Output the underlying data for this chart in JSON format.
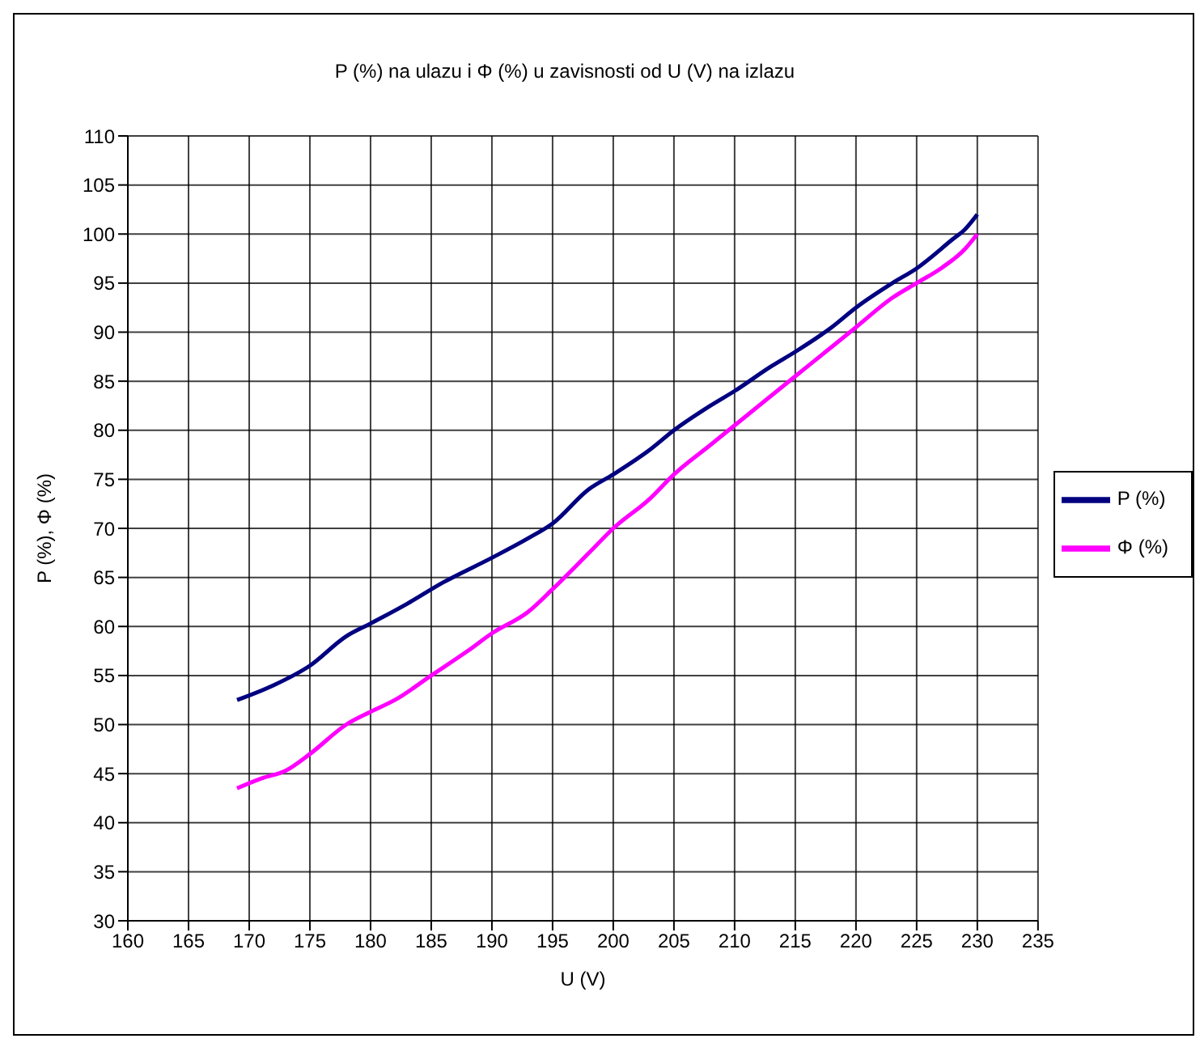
{
  "chart_data": {
    "type": "line",
    "title": "P (%) na ulazu i Φ (%) u zavisnosti od U (V) na izlazu",
    "xlabel": "U (V)",
    "ylabel": "P (%), Φ (%)",
    "xlim": [
      160,
      235
    ],
    "xticks": [
      160,
      165,
      170,
      175,
      180,
      185,
      190,
      195,
      200,
      205,
      210,
      215,
      220,
      225,
      230,
      235
    ],
    "ylim": [
      30,
      110
    ],
    "yticks": [
      30,
      35,
      40,
      45,
      50,
      55,
      60,
      65,
      70,
      75,
      80,
      85,
      90,
      95,
      100,
      105,
      110
    ],
    "grid": true,
    "legend": "right",
    "marker": "none",
    "line_style": "solid",
    "series": [
      {
        "name": "P (%)",
        "color": "#000080",
        "x": [
          169,
          172,
          175,
          178,
          180,
          183,
          186,
          190,
          193,
          195,
          198,
          200,
          203,
          205,
          208,
          210,
          213,
          215,
          218,
          220,
          223,
          225,
          228,
          229,
          230
        ],
        "values": [
          52.5,
          54,
          56,
          59,
          60.3,
          62.3,
          64.5,
          67,
          69,
          70.5,
          74,
          75.5,
          78,
          80,
          82.5,
          84,
          86.5,
          88,
          90.5,
          92.5,
          95,
          96.5,
          99.5,
          100.5,
          102
        ]
      },
      {
        "name": "Φ (%)",
        "color": "#ff00ff",
        "x": [
          169,
          171,
          173,
          175,
          178,
          180,
          182,
          185,
          188,
          190,
          193,
          195,
          198,
          200,
          203,
          205,
          208,
          210,
          213,
          215,
          218,
          220,
          223,
          225,
          227,
          229,
          230
        ],
        "values": [
          43.5,
          44.5,
          45.3,
          47,
          50,
          51.3,
          52.5,
          55,
          57.5,
          59.3,
          61.5,
          63.8,
          67.5,
          70,
          73,
          75.5,
          78.5,
          80.5,
          83.5,
          85.5,
          88.5,
          90.5,
          93.5,
          95,
          96.5,
          98.5,
          100
        ]
      }
    ]
  }
}
